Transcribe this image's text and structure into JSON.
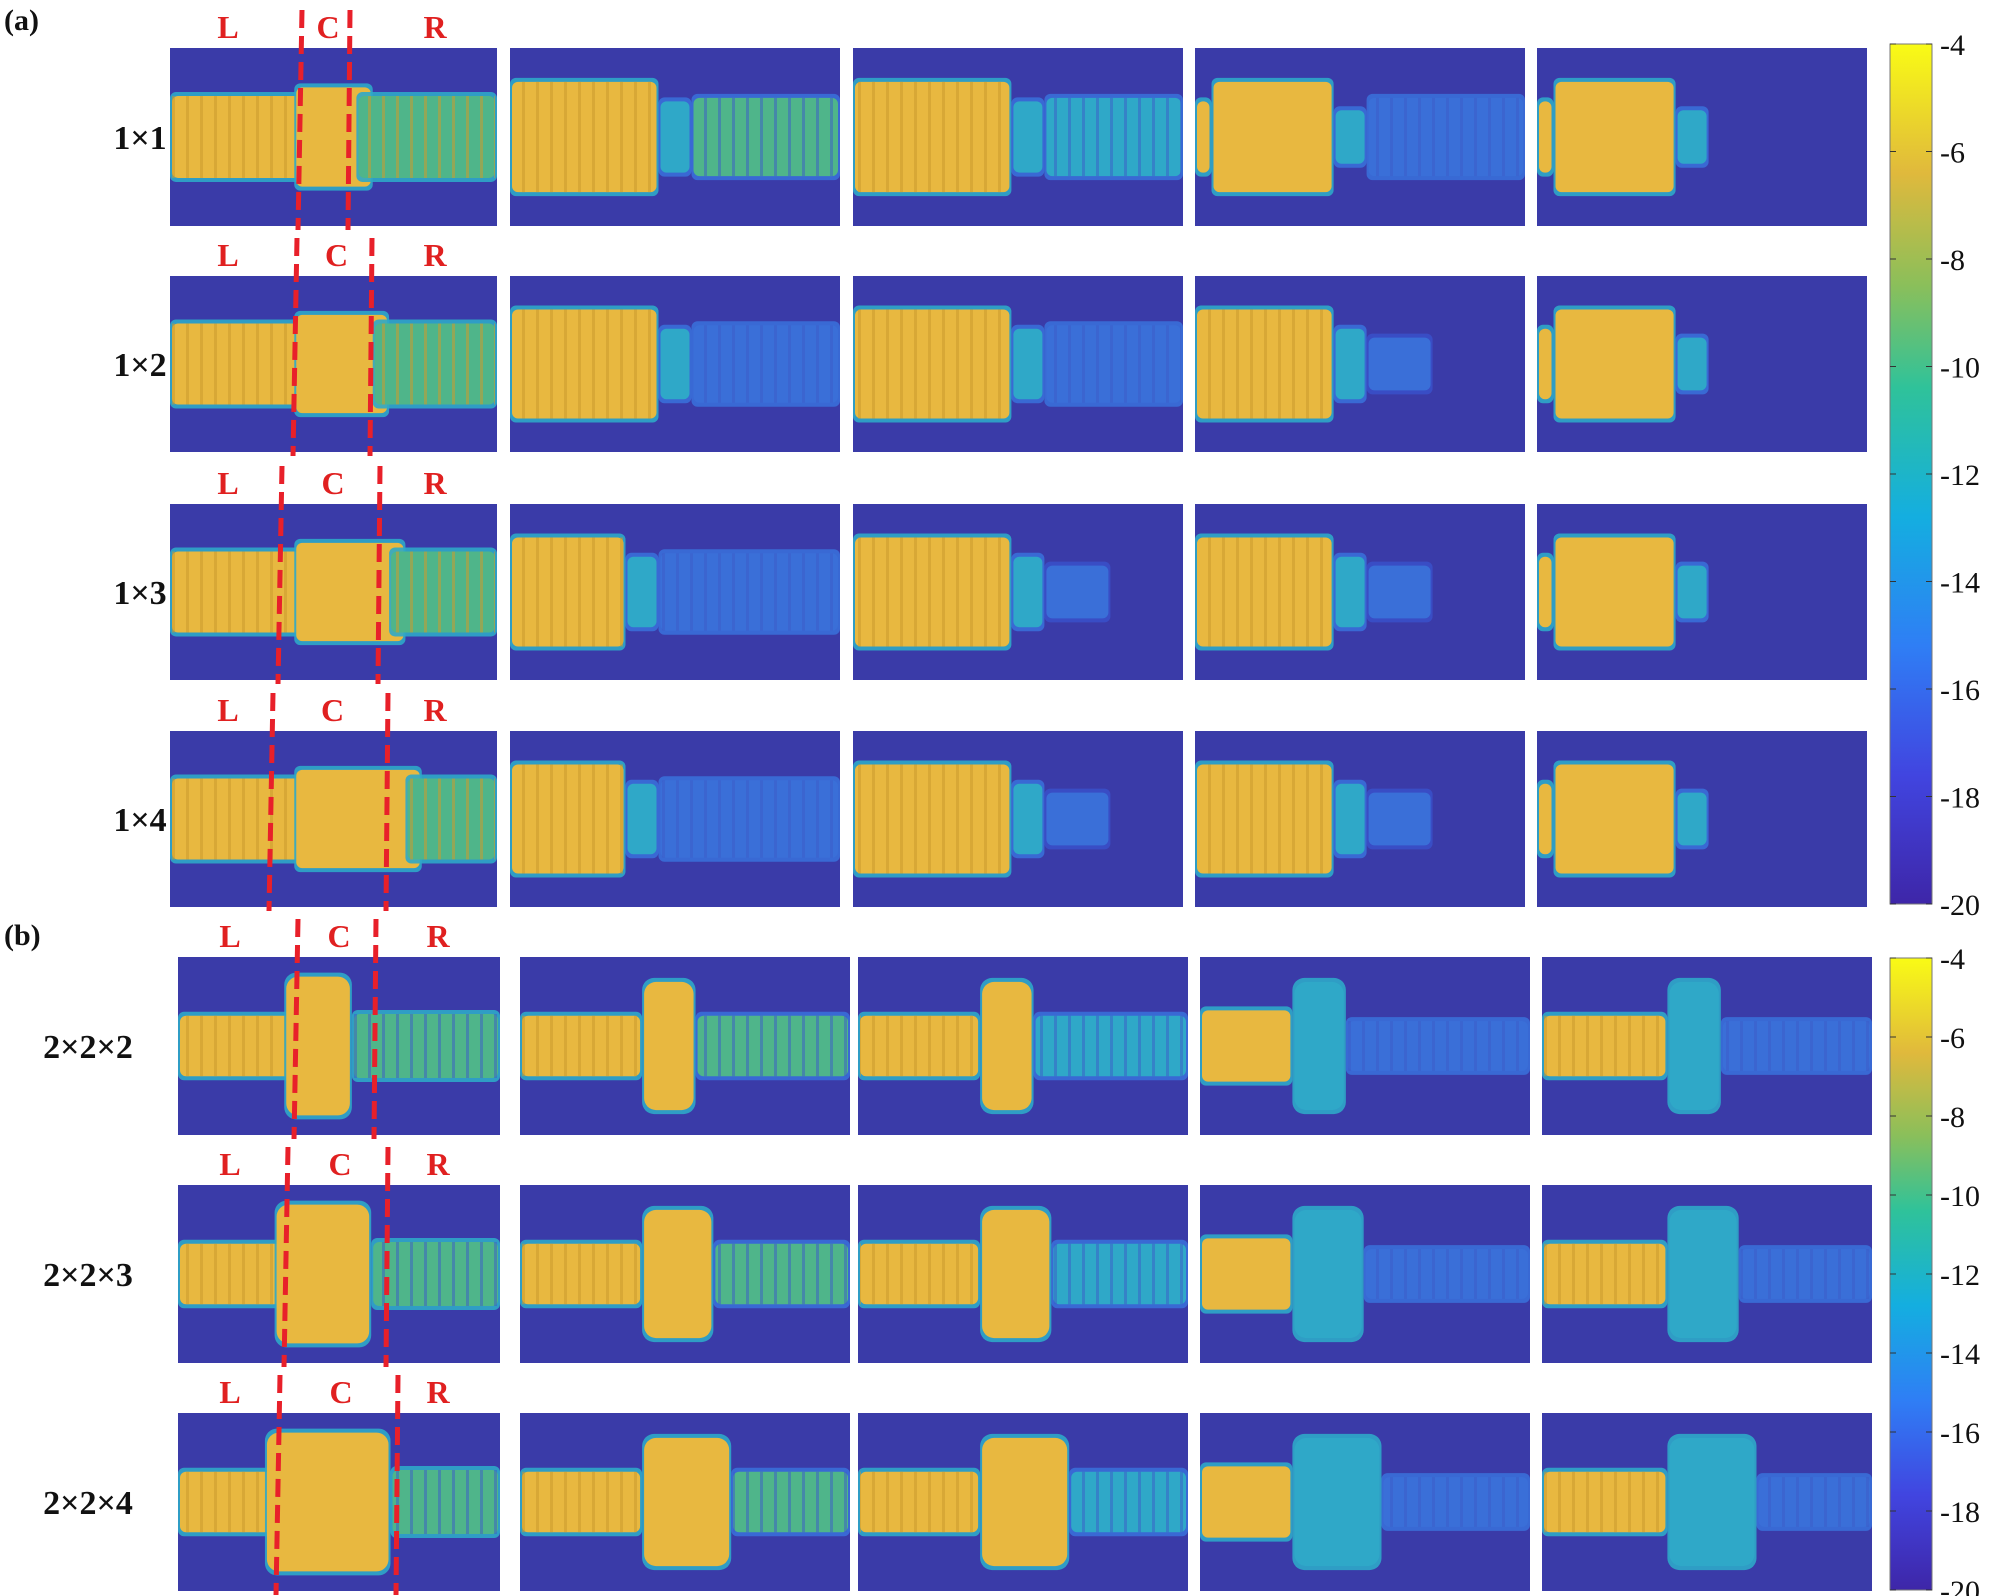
{
  "panels": [
    {
      "label": "(a)",
      "rows": [
        {
          "label": "1×1",
          "region_labels": [
            "L",
            "C",
            "R"
          ]
        },
        {
          "label": "1×2",
          "region_labels": [
            "L",
            "C",
            "R"
          ]
        },
        {
          "label": "1×3",
          "region_labels": [
            "L",
            "C",
            "R"
          ]
        },
        {
          "label": "1×4",
          "region_labels": [
            "L",
            "C",
            "R"
          ]
        }
      ],
      "colorbar": {
        "ticks": [
          "-4",
          "-6",
          "-8",
          "-10",
          "-12",
          "-14",
          "-16",
          "-18",
          "-20"
        ]
      }
    },
    {
      "label": "(b)",
      "rows": [
        {
          "label": "2×2×2",
          "region_labels": [
            "L",
            "C",
            "R"
          ]
        },
        {
          "label": "2×2×3",
          "region_labels": [
            "L",
            "C",
            "R"
          ]
        },
        {
          "label": "2×2×4",
          "region_labels": [
            "L",
            "C",
            "R"
          ]
        }
      ],
      "colorbar": {
        "ticks": [
          "-4",
          "-6",
          "-8",
          "-10",
          "-12",
          "-14",
          "-16",
          "-18",
          "-20"
        ]
      }
    }
  ],
  "colors": {
    "background": "#3a3ba8",
    "high": "#e8b840",
    "bright": "#f7e14a",
    "mid_green": "#4fb58a",
    "mid_cyan": "#2fa8c8",
    "low_blue": "#3a6fd8",
    "divider": "#e8202a"
  }
}
